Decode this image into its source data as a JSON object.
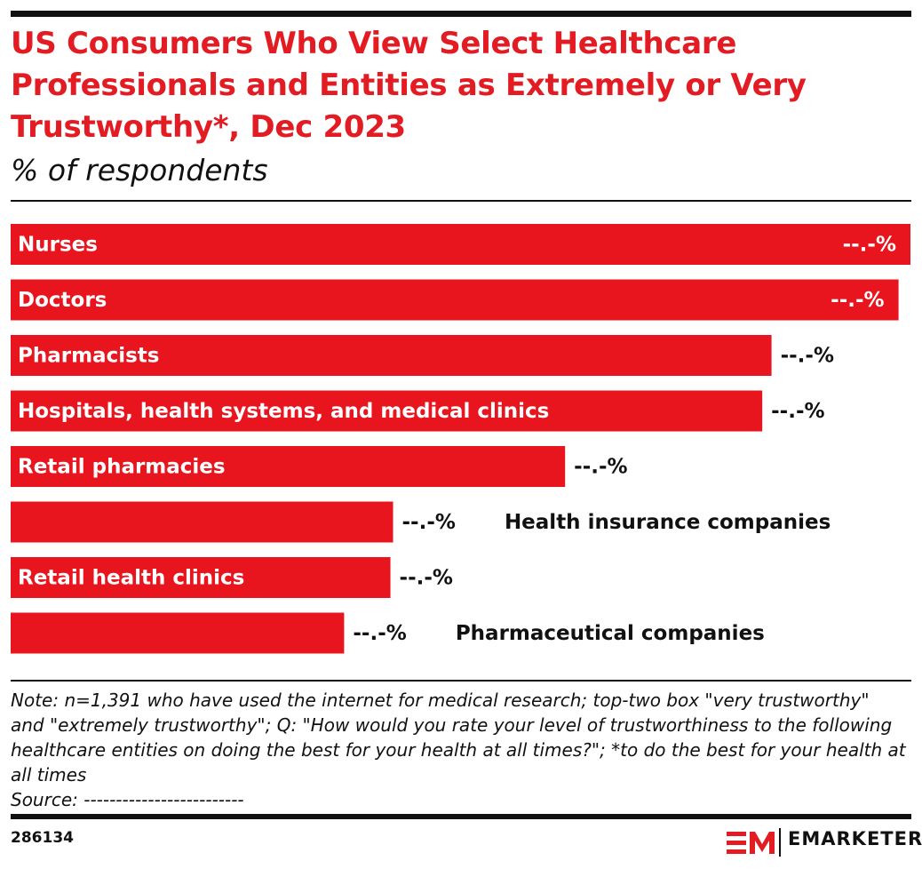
{
  "chart_data": {
    "type": "bar",
    "orientation": "horizontal",
    "title": "US Consumers Who View Select Healthcare Professionals and Entities as Extremely or Very Trustworthy*, Dec 2023",
    "subtitle": "% of respondents",
    "categories": [
      "Nurses",
      "Doctors",
      "Pharmacists",
      "Hospitals, health systems, and medical clinics",
      "Retail pharmacies",
      "Health insurance companies",
      "Retail health clinics",
      "Pharmaceutical companies"
    ],
    "values": [
      68,
      67.1,
      57.5,
      56.8,
      41.9,
      28.9,
      28.7,
      25.2
    ],
    "value_labels": [
      "--.-%",
      "--.-%",
      "--.-%",
      "--.-%",
      "--.-%",
      "--.-%",
      "--.-%",
      "--.-%"
    ],
    "color": "#e8141e",
    "note": "Note: n=1,391 who have used the internet for medical research; top-two box \"very trustworthy\" and \"extremely trustworthy\"; Q: \"How would you rate your level of trustworthiness to the following healthcare entities on doing the best for your health at all times?\"; *to do the best for your health at all times",
    "source": "Source: -------------------------",
    "chart_id": "286134",
    "brand": "EMARKETER"
  }
}
